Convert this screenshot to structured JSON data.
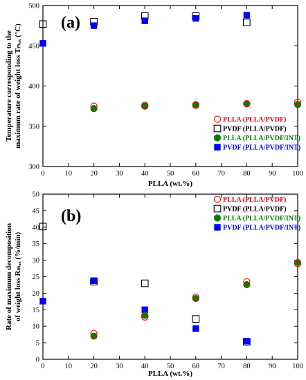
{
  "chart_data": [
    {
      "type": "scatter",
      "panel_label": "(a)",
      "xlabel": "PLLA (wt.%)",
      "ylabel_lines": [
        "Temperature corresponding to the",
        "maximum rate of weight loss Tₘₐₓ (°C)"
      ],
      "xlim": [
        0,
        100
      ],
      "ylim": [
        300,
        500
      ],
      "xticks": [
        0,
        10,
        20,
        30,
        40,
        50,
        60,
        70,
        80,
        90,
        100
      ],
      "yticks": [
        300,
        350,
        400,
        450,
        500
      ],
      "legend_position": "lower-right",
      "series": [
        {
          "name": "PLLA (PLLA/PVDF)",
          "marker": "open-circle",
          "color": "#ff0000",
          "x": [
            20,
            40,
            60,
            80,
            100
          ],
          "y": [
            375,
            376,
            376,
            378,
            380
          ]
        },
        {
          "name": "PVDF (PLLA/PVDF)",
          "marker": "open-square",
          "color": "#000000",
          "x": [
            0,
            20,
            40,
            60,
            80
          ],
          "y": [
            477,
            480,
            487,
            487,
            479
          ]
        },
        {
          "name": "PLLA (PLLA/PVDF/INT)",
          "marker": "filled-circle",
          "color": "#008000",
          "x": [
            20,
            40,
            60,
            80,
            100
          ],
          "y": [
            372,
            375,
            377,
            378,
            377
          ]
        },
        {
          "name": "PVDF (PLLA/PVDF/INT)",
          "marker": "filled-square",
          "color": "#0000ff",
          "x": [
            0,
            20,
            40,
            60,
            80
          ],
          "y": [
            453,
            475,
            481,
            484,
            488
          ]
        }
      ]
    },
    {
      "type": "scatter",
      "panel_label": "(b)",
      "xlabel": "PLLA (wt.%)",
      "ylabel_lines": [
        "Rate of maximum decomposition",
        "of weight loss Rₘₐₓ (%/min)"
      ],
      "xlim": [
        0,
        100
      ],
      "ylim": [
        0,
        50
      ],
      "xticks": [
        0,
        10,
        20,
        30,
        40,
        50,
        60,
        70,
        80,
        90,
        100
      ],
      "yticks": [
        0,
        5,
        10,
        15,
        20,
        25,
        30,
        35,
        40,
        45,
        50
      ],
      "legend_position": "upper-right",
      "series": [
        {
          "name": "PLLA (PLLA/PVDF)",
          "marker": "open-circle",
          "color": "#ff0000",
          "x": [
            20,
            40,
            60,
            80,
            100
          ],
          "y": [
            7.8,
            12.8,
            18.8,
            23.5,
            29
          ]
        },
        {
          "name": "PVDF (PLLA/PVDF)",
          "marker": "open-square",
          "color": "#000000",
          "x": [
            0,
            20,
            40,
            60,
            80
          ],
          "y": [
            40.2,
            23.5,
            23,
            12.2,
            5.3
          ]
        },
        {
          "name": "PLLA (PLLA/PVDF/INT)",
          "marker": "filled-circle",
          "color": "#008000",
          "x": [
            20,
            40,
            60,
            80,
            100
          ],
          "y": [
            7,
            13.3,
            18.4,
            22.6,
            29.3
          ]
        },
        {
          "name": "PVDF (PLLA/PVDF/INT)",
          "marker": "filled-square",
          "color": "#0000ff",
          "x": [
            0,
            20,
            40,
            60,
            80
          ],
          "y": [
            17.6,
            23.8,
            15,
            9.3,
            5.5
          ]
        }
      ]
    }
  ]
}
